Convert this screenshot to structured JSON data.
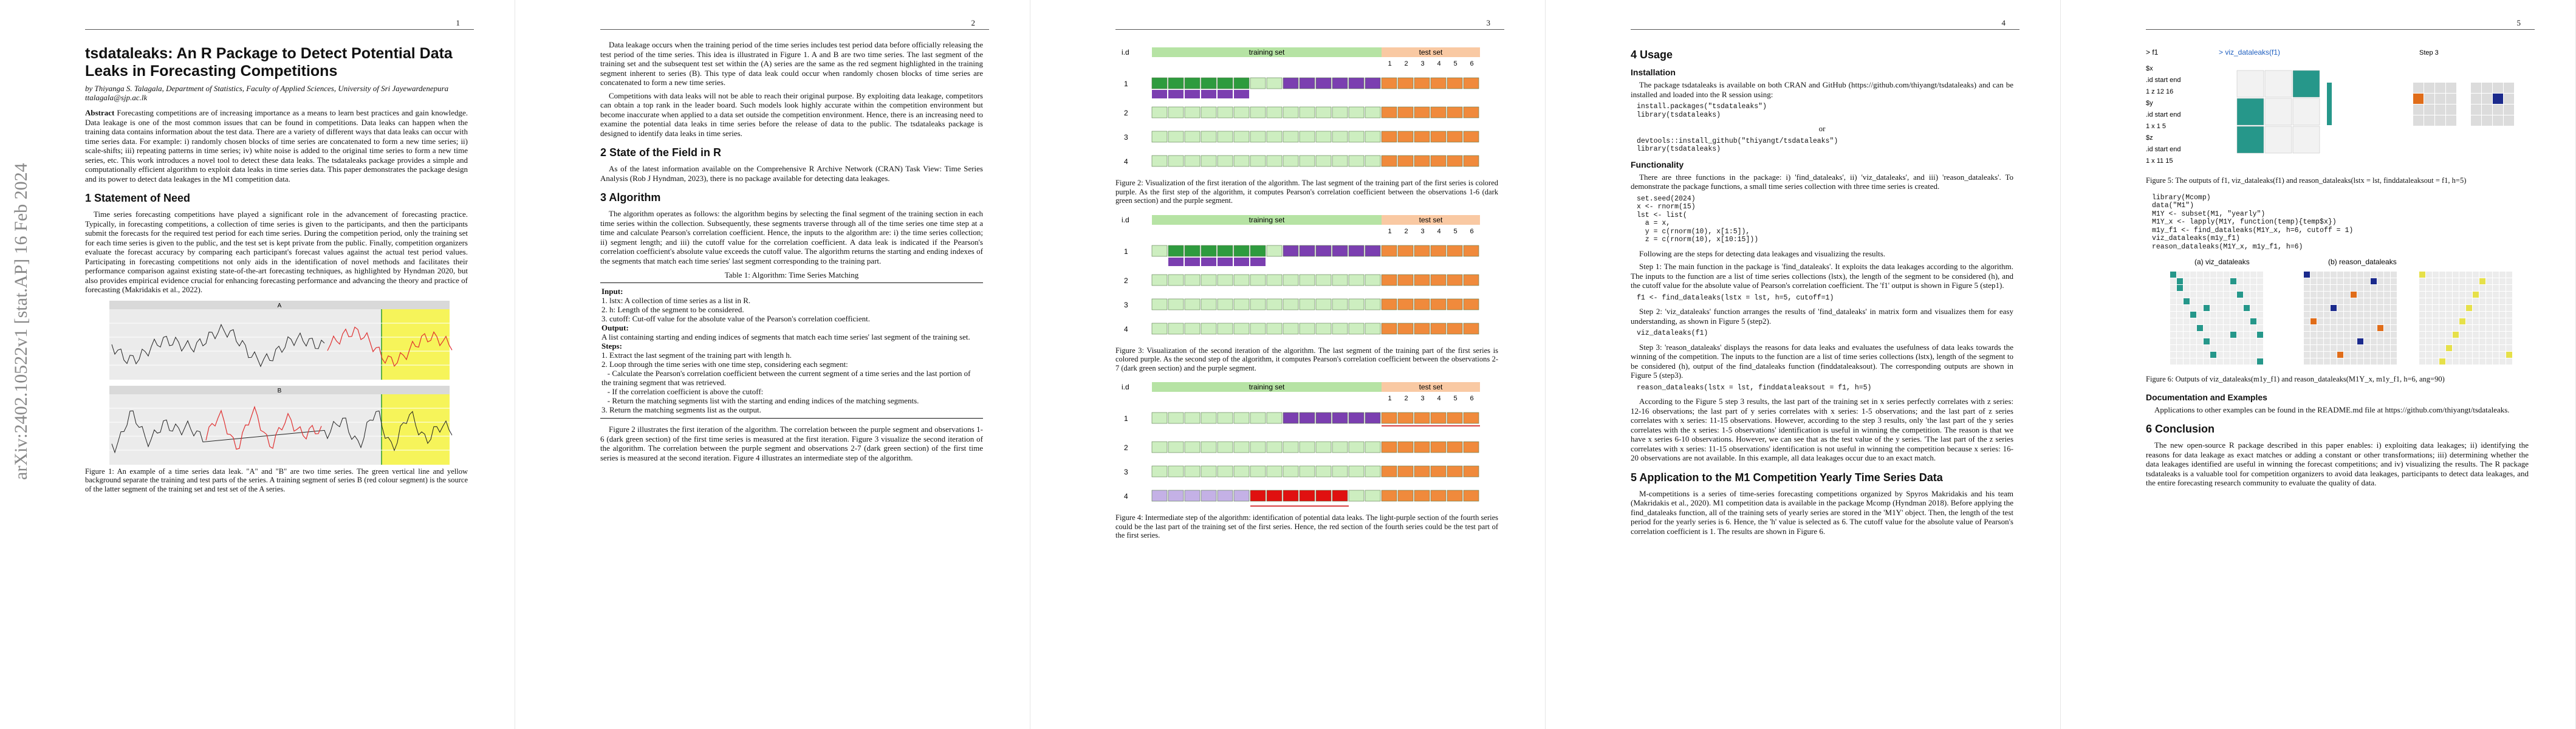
{
  "pages": [
    {
      "number": "1",
      "side_label": "arXiv:2402.10522v1  [stat.AP]  16 Feb 2024",
      "blocks": [
        {
          "type": "title",
          "text": "tsdataleaks: An R Package to Detect Potential Data Leaks in Forecasting Competitions"
        },
        {
          "type": "byline",
          "text": "by Thiyanga S. Talagala, Department of Statistics, Faculty of Applied Sciences, University of Sri Jayewardenepura"
        },
        {
          "type": "email",
          "text": "ttalagala@sjp.ac.lk"
        },
        {
          "type": "abstract",
          "lead": "Abstract",
          "text": "Forecasting competitions are of increasing importance as a means to learn best practices and gain knowledge. Data leakage is one of the most common issues that can be found in competitions. Data leaks can happen when the training data contains information about the test data. There are a variety of different ways that data leaks can occur with time series data. For example: i) randomly chosen blocks of time series are concatenated to form a new time series; ii) scale-shifts; iii) repeating patterns in time series; iv) white noise is added to the original time series to form a new time series, etc. This work introduces a novel tool to detect these data leaks. The tsdataleaks package provides a simple and computationally efficient algorithm to exploit data leaks in time series data. This paper demonstrates the package design and its power to detect data leakages in the M1 competition data."
        },
        {
          "type": "heading",
          "text": "1   Statement of Need"
        },
        {
          "type": "paragraph",
          "text": "Time series forecasting competitions have played a significant role in the advancement of forecasting practice. Typically, in forecasting competitions, a collection of time series is given to the participants, and then the participants submit the forecasts for the required test period for each time series. During the competition period, only the training set for each time series is given to the public, and the test set is kept private from the public. Finally, competition organizers evaluate the forecast accuracy by comparing each participant's forecast values against the actual test period values. Participating in forecasting competitions not only aids in the identification of novel methods and facilitates their performance comparison against existing state-of-the-art forecasting techniques, as highlighted by Hyndman 2020, but also provides empirical evidence crucial for enhancing forecasting performance and advancing the theory and practice of forecasting (Makridakis et al., 2022)."
        },
        {
          "type": "figure",
          "kind": "ts-pair",
          "labels": [
            "A",
            "B"
          ]
        },
        {
          "type": "caption",
          "text": "Figure 1: An example of a time series data leak. \"A\" and \"B\" are two time series. The green vertical line and yellow background separate the training and test parts of the series. A training segment of series B (red colour segment) is the source of the latter segment of the training set and test set of the A series."
        }
      ]
    },
    {
      "number": "2",
      "blocks": [
        {
          "type": "paragraph",
          "text": "Data leakage occurs when the training period of the time series includes test period data before officially releasing the test period of the time series. This idea is illustrated in Figure 1. A and B are two time series. The last segment of the training set and the subsequent test set within the (A) series are the same as the red segment highlighted in the training segment inherent to series (B). This type of data leak could occur when randomly chosen blocks of time series are concatenated to form a new time series."
        },
        {
          "type": "paragraph",
          "text": "Competitions with data leaks will not be able to reach their original purpose. By exploiting data leakage, competitors can obtain a top rank in the leader board. Such models look highly accurate within the competition environment but become inaccurate when applied to a data set outside the competition environment. Hence, there is an increasing need to examine the potential data leaks in time series before the release of data to the public. The tsdataleaks package is designed to identify data leaks in time series."
        },
        {
          "type": "heading",
          "text": "2   State of the Field in R"
        },
        {
          "type": "paragraph",
          "text": "As of the latest information available on the Comprehensive R Archive Network (CRAN) Task View: Time Series Analysis (Rob J Hyndman, 2023), there is no package available for detecting data leakages."
        },
        {
          "type": "heading",
          "text": "3   Algorithm"
        },
        {
          "type": "paragraph",
          "text": "The algorithm operates as follows: the algorithm begins by selecting the final segment of the training section in each time series within the collection. Subsequently, these segments traverse through all of the time series one time step at a time and calculate Pearson's correlation coefficient. Hence, the inputs to the algorithm are: i) the time series collection; ii) segment length; and iii) the cutoff value for the correlation coefficient. A data leak is indicated if the Pearson's correlation coefficient's absolute value exceeds the cutoff value. The algorithm returns the starting and ending indexes of the segments that match each time series' last segment corresponding to the training part."
        },
        {
          "type": "table-caption",
          "text": "Table 1: Algorithm: Time Series Matching"
        },
        {
          "type": "algorithm",
          "lines": [
            {
              "bold": true,
              "text": "Input:"
            },
            {
              "text": "1. lstx: A collection of time series as a list in R."
            },
            {
              "text": "2. h: Length of the segment to be considered."
            },
            {
              "text": "3. cutoff: Cut-off value for the absolute value of the Pearson's correlation coefficient."
            },
            {
              "bold": true,
              "text": "Output:"
            },
            {
              "text": "A list containing starting and ending indices of segments that match each time series' last segment of the training set."
            },
            {
              "bold": true,
              "text": "Steps:"
            },
            {
              "text": "1. Extract the last segment of the training part with length h."
            },
            {
              "text": "2. Loop through the time series with one time step, considering each segment:"
            },
            {
              "text": "   - Calculate the Pearson's correlation coefficient between the current segment of a time series and the last portion of the training segment that was retrieved."
            },
            {
              "text": "   - If the correlation coefficient is above the cutoff:"
            },
            {
              "text": "   - Return the matching segments list with the starting and ending indices of the matching segments."
            },
            {
              "text": "3. Return the matching segments list as the output."
            }
          ]
        },
        {
          "type": "paragraph",
          "text": "Figure 2 illustrates the first iteration of the algorithm. The correlation between the purple segment and observations 1-6 (dark green section) of the first time series is measured at the first iteration. Figure 3 visualize the second iteration of the algorithm. The correlation between the purple segment and observations 2-7 (dark green section) of the first time series is measured at the second iteration. Figure 4 illustrates an intermediate step of the algorithm."
        }
      ]
    },
    {
      "number": "3",
      "blocks": [
        {
          "type": "figure",
          "kind": "iter1",
          "labels": [
            "i.d",
            "training set",
            "test set",
            "1",
            "2",
            "3",
            "4",
            "5",
            "6",
            "1",
            "2",
            "3",
            "4"
          ]
        },
        {
          "type": "caption",
          "text": "Figure 2: Visualization of the first iteration of the algorithm. The last segment of the training part of the first series is colored purple. As the first step of the algorithm, it computes Pearson's correlation coefficient between the observations 1-6 (dark green section) and the purple segment."
        },
        {
          "type": "figure",
          "kind": "iter2",
          "labels": [
            "i.d",
            "training set",
            "test set",
            "1",
            "2",
            "3",
            "4",
            "5",
            "6",
            "1",
            "2",
            "3",
            "4"
          ]
        },
        {
          "type": "caption",
          "text": "Figure 3: Visualization of the second iteration of the algorithm. The last segment of the training part of the first series is colored purple. As the second step of the algorithm, it computes Pearson's correlation coefficient between the observations 2-7 (dark green section) and the purple segment."
        },
        {
          "type": "figure",
          "kind": "leak",
          "labels": [
            "i.d",
            "training set",
            "test set",
            "1",
            "2",
            "3",
            "4",
            "5",
            "6",
            "1",
            "2",
            "3",
            "4"
          ]
        },
        {
          "type": "caption",
          "text": "Figure 4: Intermediate step of the algorithm: identification of potential data leaks. The light-purple section of the fourth series could be the last part of the training set of the first series. Hence, the red section of the fourth series could be the test part of the first series."
        }
      ]
    },
    {
      "number": "4",
      "blocks": [
        {
          "type": "heading",
          "text": "4   Usage"
        },
        {
          "type": "subheading",
          "text": "Installation"
        },
        {
          "type": "paragraph",
          "text": "The package tsdataleaks is available on both CRAN and GitHub (https://github.com/thiyangt/tsdataleaks) and can be installed and loaded into the R session using:"
        },
        {
          "type": "code",
          "text": "install.packages(\"tsdataleaks\")\nlibrary(tsdataleaks)"
        },
        {
          "type": "center",
          "text": "or"
        },
        {
          "type": "code",
          "text": "devtools::install_github(\"thiyangt/tsdataleaks\")\nlibrary(tsdataleaks)"
        },
        {
          "type": "subheading",
          "text": "Functionality"
        },
        {
          "type": "paragraph",
          "text": "There are three functions in the package: i) 'find_dataleaks', ii) 'viz_dataleaks', and iii) 'reason_dataleaks'. To demonstrate the package functions, a small time series collection with three time series is created."
        },
        {
          "type": "code",
          "text": "set.seed(2024)\nx <- rnorm(15)\nlst <- list(\n  a = x,\n  y = c(rnorm(10), x[1:5]),\n  z = c(rnorm(10), x[10:15]))"
        },
        {
          "type": "paragraph",
          "text": "Following are the steps for detecting data leakages and visualizing the results."
        },
        {
          "type": "paragraph",
          "text": "Step 1: The main function in the package is 'find_dataleaks'. It exploits the data leakages according to the algorithm. The inputs to the function are a list of time series collections (lstx), the length of the segment to be considered (h), and the cutoff value for the absolute value of Pearson's correlation coefficient. The 'f1' output is shown in Figure 5 (step1)."
        },
        {
          "type": "code",
          "text": "f1 <- find_dataleaks(lstx = lst, h=5, cutoff=1)"
        },
        {
          "type": "paragraph",
          "text": "Step 2: 'viz_dataleaks' function arranges the results of 'find_dataleaks' in matrix form and visualizes them for easy understanding, as shown in Figure 5 (step2)."
        },
        {
          "type": "code",
          "text": "viz_dataleaks(f1)"
        },
        {
          "type": "paragraph",
          "text": "Step 3: 'reason_dataleaks' displays the reasons for data leaks and evaluates the usefulness of data leaks towards the winning of the competition. The inputs to the function are a list of time series collections (lstx), length of the segment to be considered (h), output of the find_dataleaks function (finddataleaksout). The corresponding outputs are shown in Figure 5 (step3)."
        },
        {
          "type": "code",
          "text": "reason_dataleaks(lstx = lst, finddataleaksout = f1, h=5)"
        },
        {
          "type": "paragraph",
          "text": "According to the Figure 5 step 3 results, the last part of the training set in x series perfectly correlates with z series: 12-16 observations; the last part of y series correlates with x series: 1-5 observations; and the last part of z series correlates with x series: 11-15 observations. However, according to the step 3 results, only 'the last part of the y series correlates with the x series: 1-5 observations' identification is useful in winning the competition. The reason is that we have x series 6-10 observations. However, we can see that as the test value of the y series. 'The last part of the z series correlates with x series: 11-15 observations' identification is not useful in winning the competition because x series: 16-20 observations are not available. In this example, all data leakages occur due to an exact match."
        },
        {
          "type": "heading",
          "text": "5   Application to the M1 Competition Yearly Time Series Data"
        },
        {
          "type": "paragraph",
          "text": "M-competitions is a series of time-series forecasting competitions organized by Spyros Makridakis and his team (Makridakis et al., 2020). M1 competition data is available in the package Mcomp (Hyndman 2018). Before applying the find_dataleaks function, all of the training sets of yearly series are stored in the 'M1Y' object. Then, the length of the test period for the yearly series is 6. Hence, the 'h' value is selected as 6. The cutoff value for the absolute value of Pearson's correlation coefficient is 1. The results are shown in Figure 6."
        }
      ]
    },
    {
      "number": "5",
      "blocks": [
        {
          "type": "figure",
          "kind": "viz-output",
          "labels": [
            "> f1",
            "> viz_dataleaks(f1)",
            "Step 3",
            "$x",
            ".id start end",
            "1  z    12  16",
            "$y",
            ".id start end",
            "1  x     1   5",
            "$z",
            ".id start end",
            "1  x    11  15"
          ]
        },
        {
          "type": "caption",
          "text": "Figure 5: The outputs of f1, viz_dataleaks(f1) and reason_dataleaks(lstx = lst, finddataleaksout = f1, h=5)"
        },
        {
          "type": "code",
          "text": "library(Mcomp)\ndata(\"M1\")\nM1Y <- subset(M1, \"yearly\")\nM1Y_x <- lapply(M1Y, function(temp){temp$x})\nm1y_f1 <- find_dataleaks(M1Y_x, h=6, cutoff = 1)\nviz_dataleaks(m1y_f1)\nreason_dataleaks(M1Y_x, m1y_f1, h=6)"
        },
        {
          "type": "figure",
          "kind": "m1-output",
          "labels": [
            "(a) viz_dataleaks",
            "(b) reason_dataleaks"
          ]
        },
        {
          "type": "caption",
          "text": "Figure 6: Outputs of viz_dataleaks(m1y_f1) and reason_dataleaks(M1Y_x, m1y_f1, h=6, ang=90)"
        },
        {
          "type": "subheading",
          "text": "Documentation and Examples"
        },
        {
          "type": "paragraph",
          "text": "Applications to other examples can be found in the README.md file at https://github.com/thiyangt/tsdataleaks."
        },
        {
          "type": "heading",
          "text": "6   Conclusion"
        },
        {
          "type": "paragraph",
          "text": "The new open-source R package described in this paper enables: i) exploiting data leakages; ii) identifying the reasons for data leakage as exact matches or adding a constant or other transformations; iii) determining whether the data leakages identified are useful in winning the forecast competitions; and iv) visualizing the results. The R package tsdataleaks is a valuable tool for competition organizers to avoid data leakages, participants to detect data leakages, and the entire forecasting research community to evaluate the quality of data."
        }
      ]
    }
  ]
}
